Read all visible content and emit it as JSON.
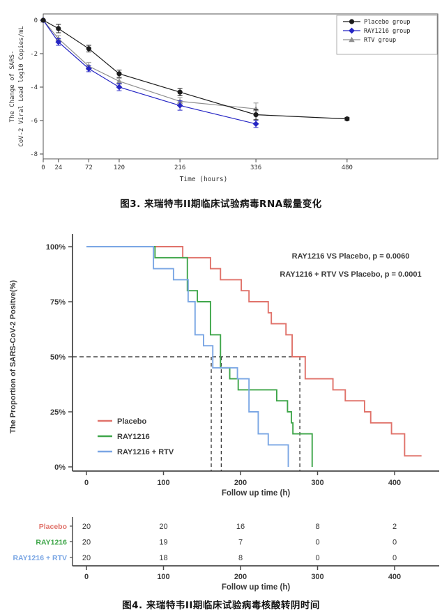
{
  "page": {
    "background": "#ffffff"
  },
  "figure3": {
    "caption": "图3. 来瑞特韦II期临床试验病毒RNA载量变化",
    "xlabel": "Time (hours)",
    "ylabel_line1": "The Change of SARS-",
    "ylabel_line2": "CoV-2 Viral Load log10 Copies/mL",
    "legend": [
      "Placebo group",
      "RAY1216 group",
      "RTV group"
    ]
  },
  "figure4": {
    "caption": "图4. 来瑞特韦II期临床试验病毒核酸转阴时间",
    "xlabel": "Follow up time (h)",
    "ylabel": "The Proportion of SARS-CoV-2 Positve(%)",
    "annotations": [
      "RAY1216 VS Placebo, p = 0.0060",
      "RAY1216 + RTV VS Placebo, p = 0.0001"
    ],
    "legend": [
      "Placebo",
      "RAY1216",
      "RAY1216 + RTV"
    ]
  },
  "chart_data": [
    {
      "id": "viral-load-change",
      "type": "line",
      "title": "",
      "xlabel": "Time (hours)",
      "ylabel": "The Change of SARS-CoV-2 Viral Load log10 Copies/mL",
      "xticks": [
        0,
        24,
        72,
        120,
        216,
        336,
        480
      ],
      "yticks": [
        0,
        -2,
        -4,
        -6,
        -8
      ],
      "ylim": [
        -8,
        0.3
      ],
      "xlim": [
        0,
        623
      ],
      "grid": false,
      "legend_position": "top-right",
      "series": [
        {
          "name": "Placebo group",
          "color": "#1b1b1b",
          "marker": "circle",
          "x": [
            0,
            24,
            72,
            120,
            216,
            336,
            480
          ],
          "y": [
            0,
            -0.5,
            -1.7,
            -3.2,
            -4.3,
            -5.65,
            -5.9
          ],
          "err": [
            0.05,
            0.25,
            0.2,
            0.22,
            0.22,
            0.3,
            0.08
          ]
        },
        {
          "name": "RAY1216 group",
          "color": "#2525c4",
          "marker": "diamond",
          "x": [
            0,
            24,
            72,
            120,
            216,
            336
          ],
          "y": [
            0,
            -1.3,
            -2.9,
            -4.0,
            -5.1,
            -6.2
          ],
          "err": [
            0.05,
            0.2,
            0.18,
            0.22,
            0.28,
            0.22
          ]
        },
        {
          "name": "RTV group",
          "color": "#8f8f8f",
          "marker": "triangle",
          "x": [
            0,
            24,
            72,
            120,
            216,
            336
          ],
          "y": [
            0,
            -1.1,
            -2.75,
            -3.65,
            -4.85,
            -5.3
          ],
          "err": [
            0.05,
            0.18,
            0.22,
            0.18,
            0.22,
            0.35
          ]
        }
      ]
    },
    {
      "id": "time-to-negative-conversion",
      "type": "line",
      "subtype": "kaplan-meier-step",
      "title": "",
      "xlabel": "Follow up time (h)",
      "ylabel": "The Proportion of SARS-CoV-2 Positve(%)",
      "xticks": [
        0,
        100,
        200,
        300,
        400
      ],
      "ytick_labels": [
        "100%",
        "75%",
        "50%",
        "25%",
        "0%"
      ],
      "ytick_values": [
        100,
        75,
        50,
        25,
        0
      ],
      "ylim": [
        0,
        100
      ],
      "xlim": [
        0,
        440
      ],
      "grid": false,
      "annotations": [
        "RAY1216 VS Placebo, p = 0.0060",
        "RAY1216 + RTV VS Placebo, p = 0.0001"
      ],
      "median_lines_h": [
        162,
        175,
        277
      ],
      "median_level_pct": 50,
      "series": [
        {
          "name": "Placebo",
          "color": "#e0726a",
          "steps": [
            [
              0,
              100
            ],
            [
              125,
              95
            ],
            [
              161,
              90
            ],
            [
              174,
              85
            ],
            [
              201,
              80
            ],
            [
              211,
              75
            ],
            [
              236,
              70
            ],
            [
              240,
              65
            ],
            [
              259,
              60
            ],
            [
              267,
              50
            ],
            [
              284,
              40
            ],
            [
              320,
              35
            ],
            [
              336,
              30
            ],
            [
              361,
              25
            ],
            [
              369,
              20
            ],
            [
              396,
              15
            ],
            [
              413,
              5
            ],
            [
              435,
              5
            ]
          ]
        },
        {
          "name": "RAY1216",
          "color": "#3fa64a",
          "steps": [
            [
              0,
              100
            ],
            [
              89,
              95
            ],
            [
              131,
              80
            ],
            [
              144,
              75
            ],
            [
              161,
              60
            ],
            [
              174,
              45
            ],
            [
              186,
              40
            ],
            [
              197,
              35
            ],
            [
              247,
              30
            ],
            [
              261,
              25
            ],
            [
              266,
              20
            ],
            [
              268,
              15
            ],
            [
              293,
              0
            ]
          ]
        },
        {
          "name": "RAY1216 + RTV",
          "color": "#7aa6e4",
          "steps": [
            [
              0,
              100
            ],
            [
              87,
              90
            ],
            [
              113,
              85
            ],
            [
              132,
              75
            ],
            [
              141,
              60
            ],
            [
              152,
              55
            ],
            [
              164,
              45
            ],
            [
              196,
              40
            ],
            [
              211,
              25
            ],
            [
              223,
              15
            ],
            [
              236,
              10
            ],
            [
              262,
              0
            ]
          ]
        }
      ],
      "risk_table": {
        "times": [
          0,
          100,
          200,
          300,
          400
        ],
        "xlabel": "Follow up time (h)",
        "rows": [
          {
            "label": "Placebo",
            "color": "#e0726a",
            "values": [
              20,
              20,
              16,
              8,
              2
            ]
          },
          {
            "label": "RAY1216",
            "color": "#3fa64a",
            "values": [
              20,
              19,
              7,
              0,
              0
            ]
          },
          {
            "label": "RAY1216 + RTV",
            "color": "#7aa6e4",
            "values": [
              20,
              18,
              8,
              0,
              0
            ]
          }
        ]
      }
    }
  ]
}
